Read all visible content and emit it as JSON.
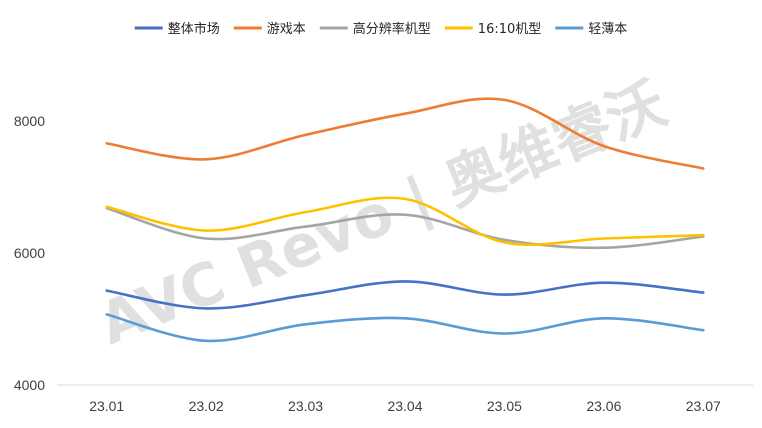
{
  "chart_data": {
    "type": "line",
    "categories": [
      "23.01",
      "23.02",
      "23.03",
      "23.04",
      "23.05",
      "23.06",
      "23.07"
    ],
    "ylim": [
      4000,
      9000
    ],
    "yticks": [
      "4000",
      "6000",
      "8000"
    ],
    "ytick_values": [
      4000,
      6000,
      8000
    ],
    "legend_position": "top",
    "smooth": true,
    "grid": false,
    "watermark": "AVC Revo | 奥维睿沃",
    "series": [
      {
        "name": "整体市场",
        "color": "#4472c4",
        "values": [
          5430,
          5160,
          5360,
          5570,
          5370,
          5550,
          5400
        ]
      },
      {
        "name": "游戏本",
        "color": "#ed7d31",
        "values": [
          7660,
          7420,
          7790,
          8110,
          8320,
          7620,
          7280
        ]
      },
      {
        "name": "高分辨率机型",
        "color": "#a5a5a5",
        "values": [
          6680,
          6220,
          6400,
          6580,
          6200,
          6080,
          6250
        ]
      },
      {
        "name": "16:10机型",
        "color": "#ffc000",
        "values": [
          6700,
          6340,
          6620,
          6820,
          6160,
          6220,
          6270
        ]
      },
      {
        "name": "轻薄本",
        "color": "#5b9bd5",
        "values": [
          5070,
          4670,
          4920,
          5010,
          4780,
          5010,
          4830
        ]
      }
    ]
  }
}
